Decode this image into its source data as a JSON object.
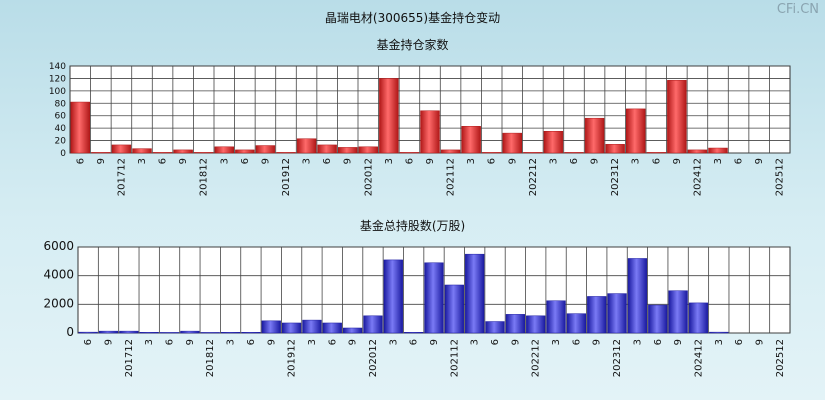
{
  "title": "晶瑞电材(300655)基金持仓变动",
  "watermark": "CFi.CN",
  "chart_data": [
    {
      "type": "bar",
      "title": "基金持仓家数",
      "ylim": [
        0,
        140
      ],
      "yticks": [
        0,
        20,
        40,
        60,
        80,
        100,
        120,
        140
      ],
      "bar_color": "#e23434",
      "categories": [
        "6",
        "9",
        "201712",
        "3",
        "6",
        "9",
        "201812",
        "3",
        "6",
        "9",
        "201912",
        "3",
        "6",
        "9",
        "202012",
        "3",
        "6",
        "9",
        "202112",
        "3",
        "6",
        "9",
        "202212",
        "3",
        "6",
        "9",
        "202312",
        "3",
        "6",
        "9",
        "202412",
        "3",
        "6",
        "9",
        "202512"
      ],
      "values": [
        82,
        1,
        13,
        7,
        1,
        5,
        1,
        10,
        5,
        12,
        1,
        23,
        13,
        9,
        10,
        120,
        1,
        68,
        5,
        43,
        1,
        32,
        1,
        35,
        1,
        56,
        14,
        71,
        1,
        117,
        5,
        8,
        0,
        0,
        0
      ]
    },
    {
      "type": "bar",
      "title": "基金总持股数(万股)",
      "ylim": [
        0,
        6000
      ],
      "yticks": [
        0,
        2000,
        4000,
        6000
      ],
      "bar_color": "#3a3ad8",
      "categories": [
        "6",
        "9",
        "201712",
        "3",
        "6",
        "9",
        "201812",
        "3",
        "6",
        "9",
        "201912",
        "3",
        "6",
        "9",
        "202012",
        "3",
        "6",
        "9",
        "202112",
        "3",
        "6",
        "9",
        "202212",
        "3",
        "6",
        "9",
        "202312",
        "3",
        "6",
        "9",
        "202412",
        "3",
        "6",
        "9",
        "202512"
      ],
      "values": [
        60,
        130,
        130,
        50,
        40,
        130,
        40,
        50,
        50,
        850,
        700,
        900,
        700,
        350,
        1200,
        5100,
        50,
        4900,
        3350,
        5500,
        800,
        1300,
        1200,
        2250,
        1350,
        2550,
        2750,
        5200,
        1950,
        2950,
        2100,
        60,
        0,
        0,
        0
      ]
    }
  ]
}
